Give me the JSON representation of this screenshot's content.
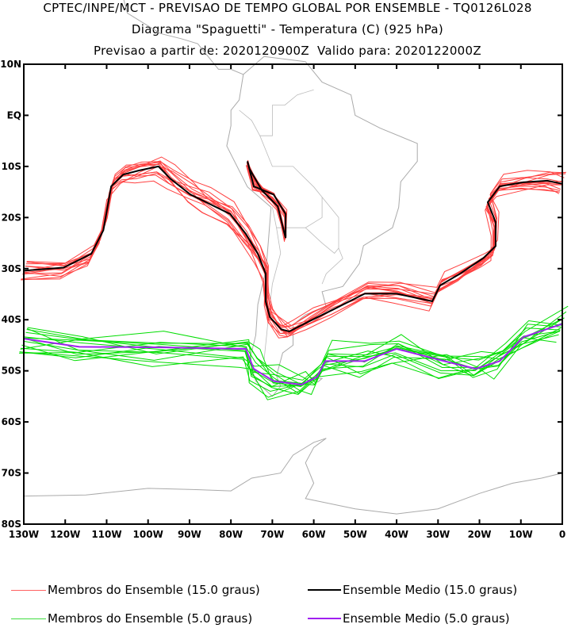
{
  "chart_data": {
    "type": "line",
    "title": "CPTEC/INPE/MCT - PREVISAO DE TEMPO GLOBAL POR ENSEMBLE - TQ0126L028",
    "subtitle": "Diagrama \"Spaguetti\" - Temperatura (C) (925 hPa)",
    "subtitle2": "Previsao a partir de: 2020120900Z  Valido para: 2020122000Z",
    "xlim": [
      -130,
      0
    ],
    "ylim": [
      -80,
      10
    ],
    "x_ticks": [
      -130,
      -120,
      -110,
      -100,
      -90,
      -80,
      -70,
      -60,
      -50,
      -40,
      -30,
      -20,
      -10,
      0
    ],
    "x_tick_labels": [
      "130W",
      "120W",
      "110W",
      "100W",
      "90W",
      "80W",
      "70W",
      "60W",
      "50W",
      "40W",
      "30W",
      "20W",
      "10W",
      "0"
    ],
    "y_ticks": [
      10,
      0,
      -10,
      -20,
      -30,
      -40,
      -50,
      -60,
      -70,
      -80
    ],
    "y_tick_labels": [
      "10N",
      "EQ",
      "10S",
      "20S",
      "30S",
      "40S",
      "50S",
      "60S",
      "70S",
      "80S"
    ],
    "colors": {
      "member15": "#ff4040",
      "mean15": "#000000",
      "member5": "#00dd00",
      "mean5": "#a020f0",
      "coast": "#aaaaaa"
    },
    "series": [
      {
        "name": "Ensemble Medio (15.0 graus)",
        "color": "#000000",
        "points": [
          [
            -130,
            -30.4
          ],
          [
            -120.4,
            -29.8
          ],
          [
            -113.7,
            -27.1
          ],
          [
            -110.8,
            -22.5
          ],
          [
            -108.9,
            -13.9
          ],
          [
            -106,
            -11.6
          ],
          [
            -102.2,
            -10.8
          ],
          [
            -97.5,
            -10
          ],
          [
            -94.6,
            -12.4
          ],
          [
            -89.8,
            -15.5
          ],
          [
            -86,
            -17
          ],
          [
            -80.2,
            -19.3
          ],
          [
            -76.4,
            -23.2
          ],
          [
            -73.5,
            -27.1
          ],
          [
            -71.6,
            -31
          ],
          [
            -71.6,
            -36.4
          ],
          [
            -70.6,
            -39.5
          ],
          [
            -67.8,
            -41.9
          ],
          [
            -65.9,
            -42.3
          ],
          [
            -61.1,
            -40.3
          ],
          [
            -55.3,
            -38
          ],
          [
            -47.7,
            -34.9
          ],
          [
            -40,
            -34.9
          ],
          [
            -31.4,
            -36.4
          ],
          [
            -29.5,
            -33.3
          ],
          [
            -24.7,
            -31
          ],
          [
            -19,
            -27.9
          ],
          [
            -16.1,
            -25.6
          ],
          [
            -16.1,
            -20.9
          ],
          [
            -18,
            -17
          ],
          [
            -15.1,
            -13.9
          ],
          [
            -9.4,
            -13.1
          ],
          [
            -3.6,
            -12.8
          ],
          [
            0,
            -13.4
          ]
        ]
      },
      {
        "name": "Ensemble Medio (15.0 graus) Andes",
        "color": "#000000",
        "points": [
          [
            -76,
            -9
          ],
          [
            -74.5,
            -13.9
          ],
          [
            -69.7,
            -15.5
          ],
          [
            -66.8,
            -19.3
          ],
          [
            -66.8,
            -24
          ],
          [
            -68.7,
            -17.8
          ],
          [
            -72.5,
            -14.7
          ],
          [
            -75.5,
            -10.5
          ]
        ]
      },
      {
        "name": "Ensemble Medio (5.0 graus)",
        "color": "#a020f0",
        "points": [
          [
            -130,
            -43.7
          ],
          [
            -116.6,
            -45.3
          ],
          [
            -97.5,
            -45.4
          ],
          [
            -76.4,
            -45.7
          ],
          [
            -74.5,
            -49.6
          ],
          [
            -69.7,
            -52
          ],
          [
            -63,
            -52.7
          ],
          [
            -59.2,
            -51.2
          ],
          [
            -57.2,
            -48.1
          ],
          [
            -47.7,
            -48.1
          ],
          [
            -40,
            -45.7
          ],
          [
            -28.5,
            -48.1
          ],
          [
            -20.9,
            -49.6
          ],
          [
            -15.1,
            -48.1
          ],
          [
            -9.4,
            -43.4
          ],
          [
            0,
            -40.8
          ]
        ]
      }
    ],
    "legend": [
      {
        "label": "Membros do Ensemble (15.0 graus)",
        "color": "#ff6060"
      },
      {
        "label": "Ensemble Medio (15.0 graus)",
        "color": "#000000"
      },
      {
        "label": "Membros do Ensemble (5.0 graus)",
        "color": "#40dd40"
      },
      {
        "label": "Ensemble Medio (5.0 graus)",
        "color": "#a020f0"
      }
    ],
    "legend_position": "bottom"
  }
}
